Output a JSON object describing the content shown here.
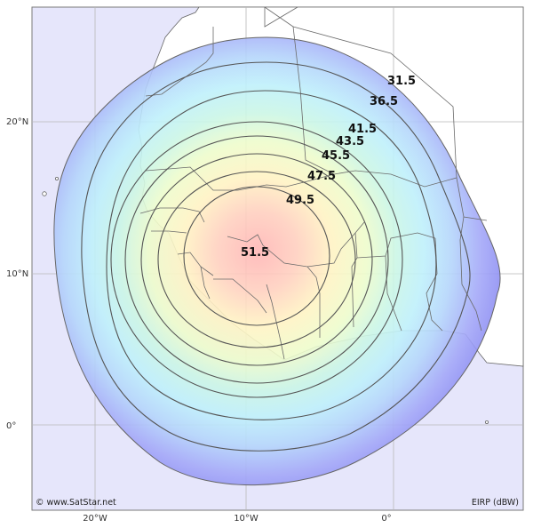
{
  "map": {
    "credit": "© www.SatStar.net",
    "units_label": "EIRP (dBW)",
    "latitude_labels": [
      "20°N",
      "10°N",
      "0°"
    ],
    "longitude_labels": [
      "20°W",
      "10°W",
      "0°"
    ],
    "contour_levels": [
      "31.5",
      "36.5",
      "41.5",
      "43.5",
      "45.5",
      "47.5",
      "49.5",
      "51.5"
    ],
    "colors": {
      "ocean": "#e6e6fb",
      "land": "#ffffff",
      "beam_edge": "#8a8af5",
      "beam_center": "#ffb8b8",
      "contour_line": "#555555",
      "border_line": "#6a6a6a"
    }
  }
}
